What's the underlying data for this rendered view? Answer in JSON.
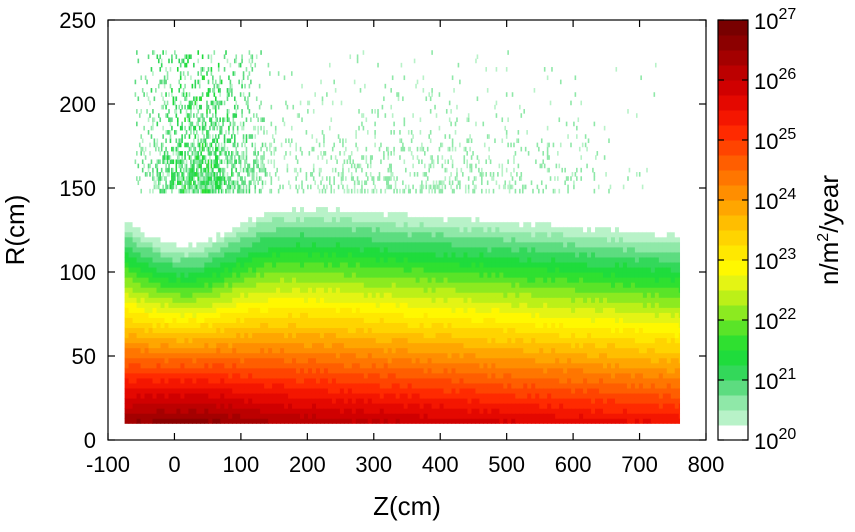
{
  "chart_data": {
    "type": "heatmap",
    "title": "",
    "xlabel": "Z(cm)",
    "ylabel": "R(cm)",
    "xlim": [
      -100,
      800
    ],
    "ylim": [
      0,
      250
    ],
    "xticks": [
      -100,
      0,
      100,
      200,
      300,
      400,
      500,
      600,
      700,
      800
    ],
    "yticks": [
      0,
      50,
      100,
      150,
      200,
      250
    ],
    "grid": false,
    "colorbar": {
      "label": "n/m²/year",
      "label_base": "n/m",
      "label_sup": "2",
      "label_tail": "/year",
      "scale": "log",
      "range_exponents": [
        20,
        27
      ],
      "tick_base": "10",
      "tick_exponents": [
        "20",
        "21",
        "22",
        "23",
        "24",
        "25",
        "26",
        "27"
      ],
      "levels": 28,
      "colors": [
        "#ffffff",
        "#b8f2c8",
        "#8fe8a8",
        "#5ddc80",
        "#33d85a",
        "#1fdc3c",
        "#2fe030",
        "#5ae428",
        "#8cea20",
        "#bcf018",
        "#e4f414",
        "#fff800",
        "#ffe800",
        "#ffd400",
        "#ffbe00",
        "#ffa600",
        "#ff8e00",
        "#ff7600",
        "#ff5e00",
        "#ff4400",
        "#ff2a00",
        "#f41600",
        "#e40800",
        "#d00000",
        "#bc0000",
        "#a40000",
        "#8c0000",
        "#780000"
      ]
    },
    "field": {
      "z_range": [
        -75,
        760
      ],
      "r_range": [
        10,
        147
      ],
      "scatter_r_max": 230,
      "peak_log10_flux": 26.3,
      "peak_location": {
        "z": 15,
        "r": 15
      },
      "flux_at_r145_log10": 21.0
    }
  }
}
